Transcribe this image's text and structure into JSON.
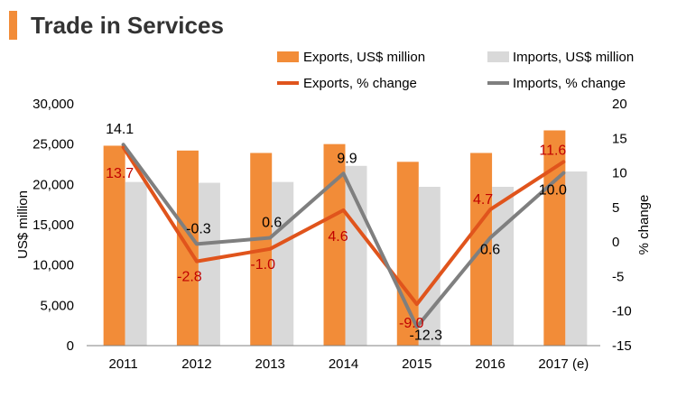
{
  "header": {
    "title": "Trade in Services"
  },
  "colors": {
    "accent": "#f28c38",
    "exports_bar": "#f28c38",
    "imports_bar": "#d9d9d9",
    "exports_line": "#e0541c",
    "imports_line": "#7f7f7f",
    "exports_label": "#c00000",
    "imports_label": "#000000",
    "axis": "#808080"
  },
  "chart_data": {
    "type": "bar",
    "title": "Trade in Services",
    "categories": [
      "2011",
      "2012",
      "2013",
      "2014",
      "2015",
      "2016",
      "2017 (e)"
    ],
    "ylabel": "US$ million",
    "y2label": "% change",
    "ylim": [
      0,
      30000
    ],
    "y2lim": [
      -15,
      20
    ],
    "yticks": [
      0,
      5000,
      10000,
      15000,
      20000,
      25000,
      30000
    ],
    "ytick_labels": [
      "0",
      "5,000",
      "10,000",
      "15,000",
      "20,000",
      "25,000",
      "30,000"
    ],
    "y2ticks": [
      -15,
      -10,
      -5,
      0,
      5,
      10,
      15,
      20
    ],
    "y2tick_labels": [
      "-15",
      "-10",
      "-5",
      "0",
      "5",
      "10",
      "15",
      "20"
    ],
    "series": [
      {
        "name": "Exports, US$ million",
        "kind": "bar",
        "axis": "left",
        "values": [
          24800,
          24200,
          23900,
          25000,
          22800,
          23900,
          26700
        ]
      },
      {
        "name": "Imports, US$ million",
        "kind": "bar",
        "axis": "left",
        "values": [
          20300,
          20200,
          20300,
          22300,
          19700,
          19700,
          21600
        ]
      },
      {
        "name": "Exports, % change",
        "kind": "line",
        "axis": "right",
        "values": [
          13.7,
          -2.8,
          -1.0,
          4.6,
          -9.0,
          4.7,
          11.6
        ],
        "labels": [
          "13.7",
          "-2.8",
          "-1.0",
          "4.6",
          "-9.0",
          "4.7",
          "11.6"
        ]
      },
      {
        "name": "Imports, % change",
        "kind": "line",
        "axis": "right",
        "values": [
          14.1,
          -0.3,
          0.6,
          9.9,
          -12.3,
          0.6,
          10.0
        ],
        "labels": [
          "14.1",
          "-0.3",
          "0.6",
          "9.9",
          "-12.3",
          "0.6",
          "10.0"
        ]
      }
    ],
    "legend": "top"
  }
}
